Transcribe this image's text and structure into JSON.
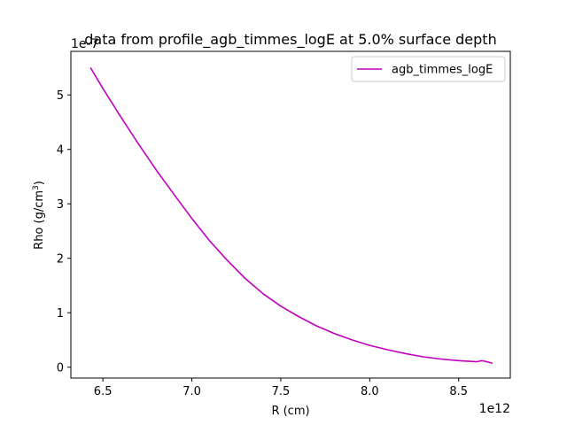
{
  "chart_data": {
    "type": "line",
    "title": "data from profile_agb_timmes_logE at 5.0% surface depth",
    "xlabel": "R (cm)",
    "ylabel_main": "Rho (g/cm",
    "ylabel_sup": "3",
    "ylabel_end": ")",
    "x_offset_text": "1e12",
    "y_offset_text": "1e-7",
    "xlim": [
      6.32,
      8.79
    ],
    "ylim": [
      -0.2,
      5.8
    ],
    "x_ticks": [
      {
        "value": 6.5,
        "label": "6.5"
      },
      {
        "value": 7.0,
        "label": "7.0"
      },
      {
        "value": 7.5,
        "label": "7.5"
      },
      {
        "value": 8.0,
        "label": "8.0"
      },
      {
        "value": 8.5,
        "label": "8.5"
      }
    ],
    "y_ticks": [
      {
        "value": 0,
        "label": "0"
      },
      {
        "value": 1,
        "label": "1"
      },
      {
        "value": 2,
        "label": "2"
      },
      {
        "value": 3,
        "label": "3"
      },
      {
        "value": 4,
        "label": "4"
      },
      {
        "value": 5,
        "label": "5"
      }
    ],
    "grid": false,
    "legend_position": "top-right",
    "series": [
      {
        "name": "agb_timmes_logE",
        "color": "#bf00bf",
        "x": [
          6.43,
          6.5,
          6.6,
          6.7,
          6.8,
          6.9,
          7.0,
          7.1,
          7.2,
          7.3,
          7.4,
          7.5,
          7.6,
          7.7,
          7.8,
          7.9,
          8.0,
          8.1,
          8.2,
          8.3,
          8.4,
          8.5,
          8.6,
          8.63,
          8.66,
          8.69
        ],
        "y": [
          5.5,
          5.12,
          4.6,
          4.1,
          3.62,
          3.17,
          2.73,
          2.32,
          1.96,
          1.63,
          1.35,
          1.12,
          0.93,
          0.76,
          0.62,
          0.5,
          0.4,
          0.32,
          0.25,
          0.19,
          0.15,
          0.12,
          0.1,
          0.12,
          0.1,
          0.07
        ]
      }
    ]
  }
}
